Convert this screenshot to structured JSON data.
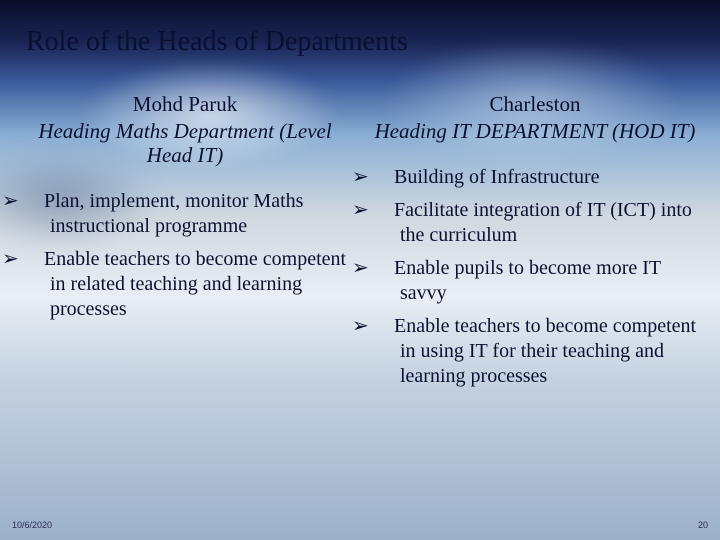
{
  "title": "Role of the Heads of Departments",
  "left": {
    "name": "Mohd Paruk",
    "subhead": "Heading Maths Department (Level Head IT)",
    "bullets": [
      "Plan, implement, monitor Maths instructional programme",
      "Enable teachers to become competent in related teaching and learning processes"
    ]
  },
  "right": {
    "name": "Charleston",
    "subhead": "Heading IT DEPARTMENT (HOD IT)",
    "bullets": [
      "Building of Infrastructure",
      "Facilitate integration of IT (ICT) into the curriculum",
      "Enable pupils to become more IT savvy",
      "Enable teachers to become competent in using IT for their teaching and learning processes"
    ]
  },
  "footer": {
    "date": "10/6/2020",
    "page": "20"
  },
  "colors": {
    "text": "#0a1030",
    "bg_top": "#0a0e2a",
    "bg_bottom": "#9db0ca"
  },
  "bullet_glyph": "➢"
}
